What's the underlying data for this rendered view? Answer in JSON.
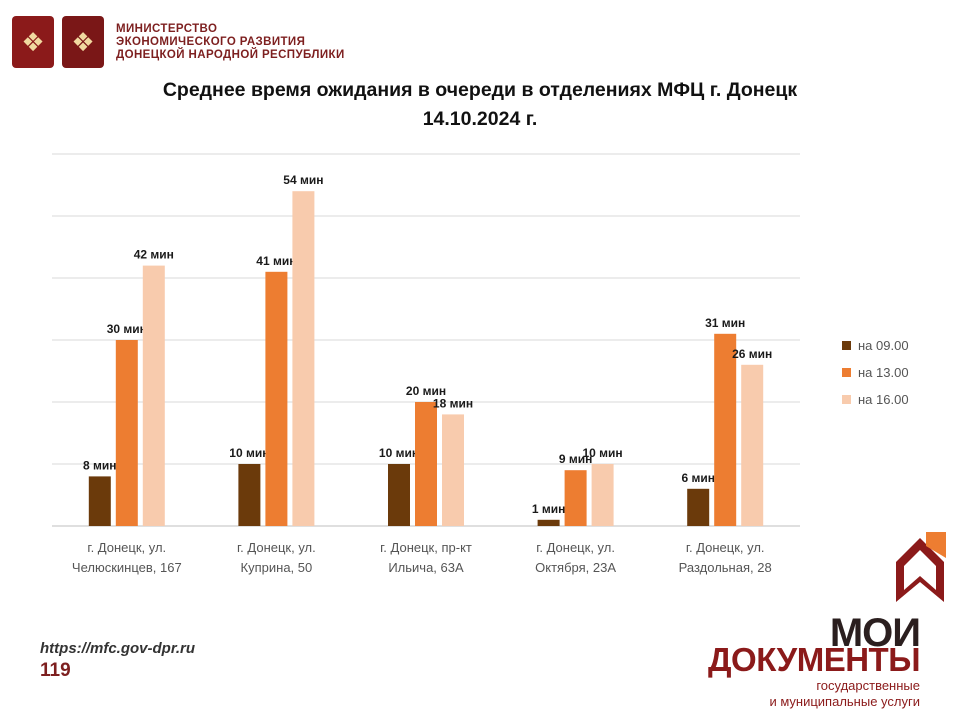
{
  "header": {
    "ministry_lines": [
      "МИНИСТЕРСТВО",
      "ЭКОНОМИЧЕСКОГО РАЗВИТИЯ",
      "ДОНЕЦКОЙ НАРОДНОЙ РЕСПУБЛИКИ"
    ],
    "emblem_icons": [
      "russia-coat-of-arms-icon",
      "dpr-coat-of-arms-icon"
    ]
  },
  "chart_data": {
    "type": "bar",
    "title_lines": [
      "Среднее время ожидания в очереди в отделениях МФЦ г. Донецк",
      "14.10.2024 г."
    ],
    "categories": [
      [
        "г. Донецк, ул.",
        "Челюскинцев, 167"
      ],
      [
        "г. Донецк, ул.",
        "Куприна, 50"
      ],
      [
        "г. Донецк, пр-кт",
        "Ильича, 63А"
      ],
      [
        "г. Донецк, ул.",
        "Октября, 23А"
      ],
      [
        "г. Донецк, ул.",
        "Раздольная, 28"
      ]
    ],
    "series": [
      {
        "name": "на 09.00",
        "color": "#6b3a0b",
        "values": [
          8,
          10,
          10,
          1,
          6
        ],
        "labels": [
          "8 мин",
          "10 мин",
          "10 мин",
          "1 мин",
          "6 мин"
        ]
      },
      {
        "name": "на 13.00",
        "color": "#ed7d31",
        "values": [
          30,
          41,
          20,
          9,
          31
        ],
        "labels": [
          "30 мин",
          "41 мин",
          "20 мин",
          "9 мин",
          "31 мин"
        ]
      },
      {
        "name": "на 16.00",
        "color": "#f8cbad",
        "values": [
          42,
          54,
          18,
          10,
          26
        ],
        "labels": [
          "42 мин",
          "54 мин",
          "18 мин",
          "10 мин",
          "26 мин"
        ]
      }
    ],
    "ylim": [
      0,
      60
    ],
    "grid": true,
    "y_tick_labels_visible": false,
    "legend_position": "right"
  },
  "footer": {
    "url": "https://mfc.gov-dpr.ru",
    "page_number": "119"
  },
  "brand": {
    "line1": "МОИ",
    "line2": "ДОКУМЕНТЫ",
    "line3": "государственные",
    "line4": "и муниципальные услуги",
    "colors": {
      "dark": "#2b1f1f",
      "red": "#8b1a1a",
      "orange": "#ed7d31"
    }
  }
}
